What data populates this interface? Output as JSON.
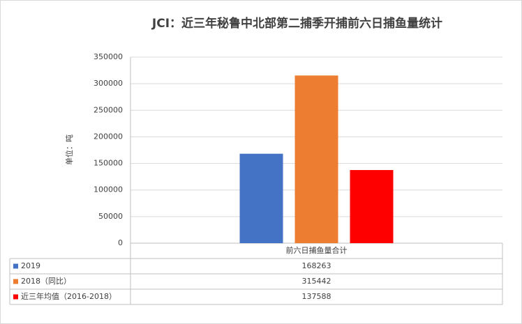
{
  "chart_data": {
    "type": "bar",
    "title": "JCI：近三年秘鲁中北部第二捕季开捕前六日捕鱼量统计",
    "y_label": "单位：吨",
    "categories": [
      "前六日捕鱼量合计"
    ],
    "series": [
      {
        "name": "2019",
        "color": "#4472c4",
        "values": [
          168263
        ]
      },
      {
        "name": "2018（同比）",
        "color": "#ed7d31",
        "values": [
          315442
        ]
      },
      {
        "name": "近三年均值（2016-2018）",
        "color": "#ff0000",
        "values": [
          137588
        ]
      }
    ],
    "ylim": [
      0,
      350000
    ],
    "yticks": [
      0,
      50000,
      100000,
      150000,
      200000,
      250000,
      300000,
      350000
    ],
    "grid": true,
    "data_table": true
  }
}
